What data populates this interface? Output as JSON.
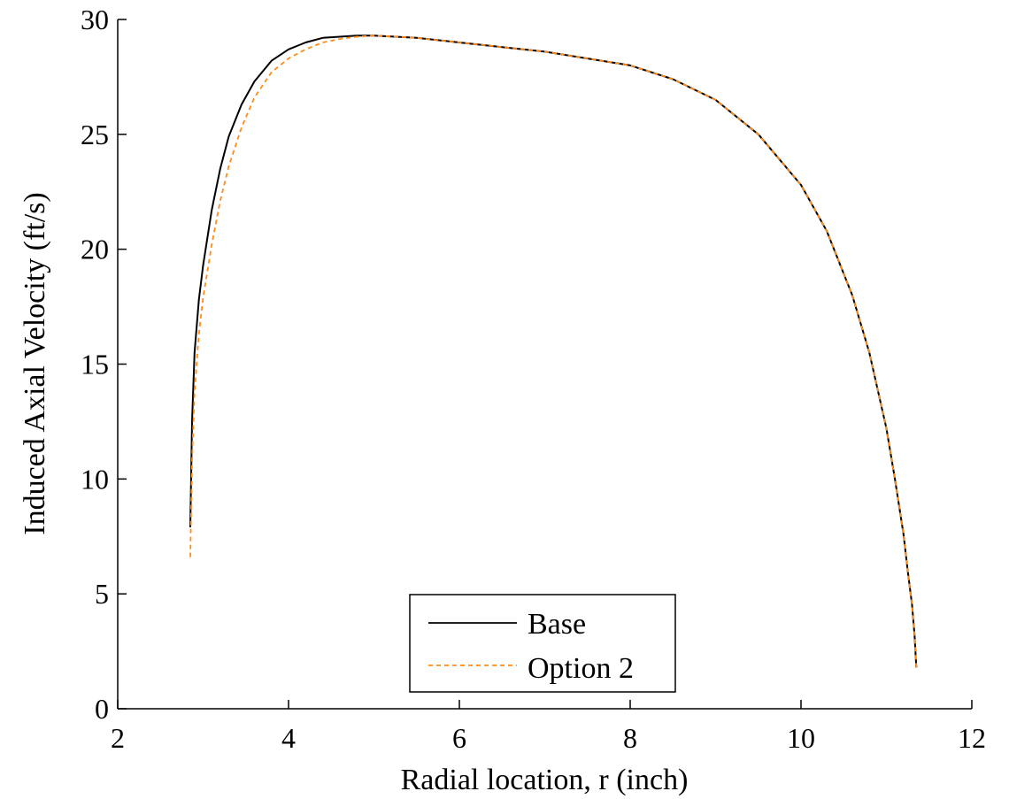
{
  "chart_data": {
    "type": "line",
    "title": "",
    "xlabel": "Radial location, r (inch)",
    "ylabel": "Induced Axial Velocity (ft/s)",
    "xlim": [
      2,
      12
    ],
    "ylim": [
      0,
      30
    ],
    "xticks": [
      "2",
      "4",
      "6",
      "8",
      "10",
      "12"
    ],
    "yticks": [
      "0",
      "5",
      "10",
      "15",
      "20",
      "25",
      "30"
    ],
    "grid": false,
    "legend_position": "bottom-center",
    "series": [
      {
        "name": "Base",
        "color": "#000000",
        "style": "solid",
        "x": [
          2.85,
          2.87,
          2.9,
          2.95,
          3.0,
          3.1,
          3.2,
          3.3,
          3.45,
          3.6,
          3.8,
          4.0,
          4.2,
          4.4,
          4.6,
          4.8,
          5.0,
          5.5,
          6.0,
          6.5,
          7.0,
          7.5,
          8.0,
          8.5,
          9.0,
          9.5,
          10.0,
          10.3,
          10.6,
          10.8,
          11.0,
          11.1,
          11.2,
          11.25,
          11.3,
          11.33,
          11.35
        ],
        "y": [
          7.9,
          12.5,
          15.5,
          17.8,
          19.3,
          21.7,
          23.5,
          24.9,
          26.3,
          27.3,
          28.2,
          28.7,
          29.0,
          29.2,
          29.25,
          29.3,
          29.3,
          29.2,
          29.0,
          28.8,
          28.6,
          28.3,
          28.0,
          27.4,
          26.5,
          25.0,
          22.8,
          20.8,
          18.0,
          15.5,
          12.2,
          10.0,
          7.6,
          6.0,
          4.5,
          3.2,
          1.8
        ]
      },
      {
        "name": "Option 2",
        "color": "#ff8c1a",
        "style": "dashed",
        "x": [
          2.85,
          2.87,
          2.9,
          2.95,
          3.0,
          3.1,
          3.2,
          3.3,
          3.45,
          3.6,
          3.8,
          4.0,
          4.2,
          4.4,
          4.6,
          4.8,
          5.0,
          5.5,
          6.0,
          6.5,
          7.0,
          7.5,
          8.0,
          8.5,
          9.0,
          9.5,
          10.0,
          10.3,
          10.6,
          10.8,
          11.0,
          11.1,
          11.2,
          11.25,
          11.3,
          11.33,
          11.35
        ],
        "y": [
          6.6,
          10.8,
          13.8,
          16.3,
          17.9,
          20.2,
          22.1,
          23.6,
          25.3,
          26.6,
          27.7,
          28.3,
          28.7,
          29.0,
          29.15,
          29.25,
          29.3,
          29.2,
          29.0,
          28.8,
          28.6,
          28.3,
          28.0,
          27.4,
          26.5,
          25.0,
          22.8,
          20.8,
          18.0,
          15.5,
          12.2,
          10.0,
          7.6,
          6.0,
          4.5,
          3.2,
          1.8
        ]
      }
    ]
  }
}
